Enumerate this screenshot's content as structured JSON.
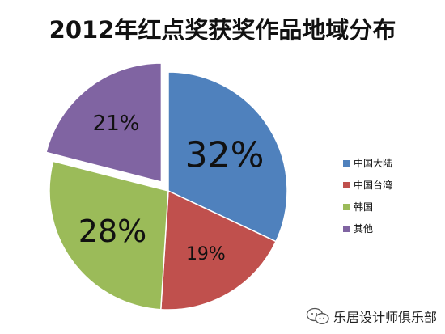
{
  "chart_data": {
    "type": "pie",
    "title": "2012年红点奖获奖作品地域分布",
    "slices": [
      {
        "name": "中国大陆",
        "value": 32,
        "label": "32%",
        "color": "#4f81bd"
      },
      {
        "name": "中国台湾",
        "value": 19,
        "label": "19%",
        "color": "#c0504d"
      },
      {
        "name": "韩国",
        "value": 28,
        "label": "28%",
        "color": "#9bbb59"
      },
      {
        "name": "其他",
        "value": 21,
        "label": "21%",
        "color": "#8064a2",
        "exploded": true
      }
    ],
    "legend_position": "right"
  },
  "watermark": {
    "text": "乐居设计师俱乐部",
    "icon": "wechat-icon"
  }
}
